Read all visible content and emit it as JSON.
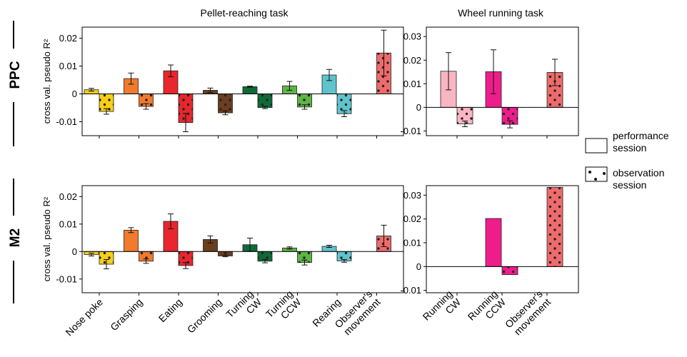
{
  "figure": {
    "col_titles": [
      "Pellet-reaching task",
      "Wheel running task"
    ],
    "row_labels": [
      "PPC",
      "M2"
    ],
    "legend": [
      {
        "label": "performance\nsession",
        "pattern": "solid"
      },
      {
        "label": "observation\nsession",
        "pattern": "dotted"
      }
    ]
  },
  "chart_data": [
    {
      "type": "bar",
      "panel": "PPC pellet-reaching",
      "title": "Pellet-reaching task",
      "ylabel": "cross val. pseudo R²",
      "ylim": [
        -0.015,
        0.024
      ],
      "yticks": [
        -0.01,
        0,
        0.01,
        0.02
      ],
      "ytick_labels": [
        "-0.01",
        "0",
        "0.01",
        "0.02"
      ],
      "categories": [
        "Nose poke",
        "Grasping",
        "Eating",
        "Grooming",
        "Turning CW",
        "Turning CCW",
        "Rearing",
        "Observer's movement"
      ],
      "colors": [
        "#f7cf18",
        "#f07a2d",
        "#e8262d",
        "#6b3e1f",
        "#0e6a37",
        "#5db546",
        "#5fc3cc",
        "#ef6b6b"
      ],
      "series": [
        {
          "name": "performance session",
          "values": [
            0.0015,
            0.0055,
            0.0083,
            0.0013,
            0.0026,
            0.0029,
            0.0068,
            null
          ],
          "errors": [
            0.0005,
            0.002,
            0.0021,
            0.0008,
            0.0002,
            0.0016,
            0.002,
            null
          ]
        },
        {
          "name": "observation session",
          "values": [
            -0.0063,
            -0.0045,
            -0.0103,
            -0.0068,
            -0.0049,
            -0.0047,
            -0.0071,
            0.0147
          ],
          "errors": [
            0.001,
            0.001,
            0.0033,
            0.0007,
            0.0004,
            0.0008,
            0.0011,
            0.0082
          ]
        }
      ]
    },
    {
      "type": "bar",
      "panel": "PPC wheel running",
      "title": "Wheel running task",
      "ylim": [
        -0.012,
        0.034
      ],
      "yticks": [
        -0.01,
        0,
        0.01,
        0.02,
        0.03
      ],
      "ytick_labels": [
        "-0.01",
        "0",
        "0.01",
        "0.02",
        "0.03"
      ],
      "categories": [
        "Running CW",
        "Running CCW",
        "Observer's movement"
      ],
      "colors": [
        "#f9b5c4",
        "#ef1d8c",
        "#ef6b6b"
      ],
      "series": [
        {
          "name": "performance session",
          "values": [
            0.0153,
            0.0151,
            null
          ],
          "errors": [
            0.0079,
            0.0093,
            null
          ]
        },
        {
          "name": "observation session",
          "values": [
            -0.007,
            -0.0072,
            0.0148
          ],
          "errors": [
            0.0012,
            0.0015,
            0.0056
          ]
        }
      ]
    },
    {
      "type": "bar",
      "panel": "M2 pellet-reaching",
      "ylabel": "cross val. pseudo R²",
      "ylim": [
        -0.015,
        0.024
      ],
      "yticks": [
        -0.01,
        0,
        0.01,
        0.02
      ],
      "ytick_labels": [
        "-0.01",
        "0",
        "0.01",
        "0.02"
      ],
      "categories": [
        "Nose poke",
        "Grasping",
        "Eating",
        "Grooming",
        "Turning CW",
        "Turning CCW",
        "Rearing",
        "Observer's movement"
      ],
      "colors": [
        "#f7cf18",
        "#f07a2d",
        "#e8262d",
        "#6b3e1f",
        "#0e6a37",
        "#5db546",
        "#5fc3cc",
        "#ef6b6b"
      ],
      "series": [
        {
          "name": "performance session",
          "values": [
            -0.0011,
            0.0078,
            0.011,
            0.0044,
            0.0025,
            0.0013,
            0.0019,
            null
          ],
          "errors": [
            0.0005,
            0.0009,
            0.0027,
            0.0013,
            0.0024,
            0.0004,
            0.0004,
            null
          ]
        },
        {
          "name": "observation session",
          "values": [
            -0.0046,
            -0.0035,
            -0.0051,
            -0.0016,
            -0.0035,
            -0.004,
            -0.0034,
            0.0057
          ],
          "errors": [
            0.0017,
            0.0008,
            0.0011,
            0.0003,
            0.0006,
            0.0009,
            0.0005,
            0.0039
          ]
        }
      ]
    },
    {
      "type": "bar",
      "panel": "M2 wheel running",
      "ylim": [
        -0.011,
        0.034
      ],
      "yticks": [
        -0.01,
        0,
        0.01,
        0.02,
        0.03
      ],
      "ytick_labels": [
        "-0.01",
        "0",
        "0.01",
        "0.02",
        "0.03"
      ],
      "categories": [
        "Running CW",
        "Running CCW",
        "Observer's movement"
      ],
      "colors": [
        "#f9b5c4",
        "#ef1d8c",
        "#ef6b6b"
      ],
      "series": [
        {
          "name": "performance session",
          "values": [
            null,
            0.0202,
            null
          ],
          "errors": [
            null,
            null,
            null
          ]
        },
        {
          "name": "observation session",
          "values": [
            null,
            -0.0034,
            0.0333
          ],
          "errors": [
            null,
            null,
            null
          ]
        }
      ]
    }
  ]
}
